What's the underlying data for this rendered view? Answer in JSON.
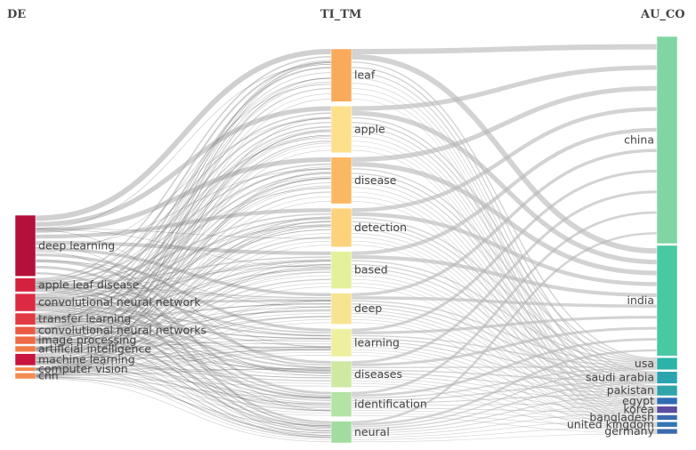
{
  "columns": [
    {
      "header": "DE"
    },
    {
      "header": "TI_TM"
    },
    {
      "header": "AU_CO"
    }
  ],
  "nodes": {
    "DE": [
      {
        "label": "deep learning",
        "weight": 31,
        "color": "#b5103c"
      },
      {
        "label": "apple leaf disease",
        "weight": 7,
        "color": "#d52140"
      },
      {
        "label": "convolutional neural network",
        "weight": 9,
        "color": "#dc2a43"
      },
      {
        "label": "transfer learning",
        "weight": 6,
        "color": "#e23a45"
      },
      {
        "label": "convolutional neural networks",
        "weight": 4,
        "color": "#e95b43"
      },
      {
        "label": "image processing",
        "weight": 4,
        "color": "#ef6a46"
      },
      {
        "label": "artificial intelligence",
        "weight": 3,
        "color": "#f07a44"
      },
      {
        "label": "machine learning",
        "weight": 6,
        "color": "#c8143e"
      },
      {
        "label": "computer vision",
        "weight": 2,
        "color": "#f38a4c"
      },
      {
        "label": "cnn",
        "weight": 3,
        "color": "#f58b53"
      }
    ],
    "TI_TM": [
      {
        "label": "leaf",
        "weight": 34,
        "color": "#f9aa5b"
      },
      {
        "label": "apple",
        "weight": 30,
        "color": "#fde08b"
      },
      {
        "label": "disease",
        "weight": 30,
        "color": "#fbb862"
      },
      {
        "label": "detection",
        "weight": 25,
        "color": "#fdd27c"
      },
      {
        "label": "based",
        "weight": 24,
        "color": "#e4f19a"
      },
      {
        "label": "deep",
        "weight": 20,
        "color": "#f7e491"
      },
      {
        "label": "learning",
        "weight": 18,
        "color": "#eef0a0"
      },
      {
        "label": "diseases",
        "weight": 17,
        "color": "#cfe9a2"
      },
      {
        "label": "identification",
        "weight": 16,
        "color": "#b4e3a4"
      },
      {
        "label": "neural",
        "weight": 14,
        "color": "#a2dca1"
      }
    ],
    "AU_CO": [
      {
        "label": "china",
        "weight": 120,
        "color": "#7fd6a2"
      },
      {
        "label": "india",
        "weight": 64,
        "color": "#48c9a1"
      },
      {
        "label": "usa",
        "weight": 7,
        "color": "#2ab3a8"
      },
      {
        "label": "saudi arabia",
        "weight": 7,
        "color": "#2aa5b0"
      },
      {
        "label": "pakistan",
        "weight": 6,
        "color": "#2fa5a9"
      },
      {
        "label": "egypt",
        "weight": 4,
        "color": "#2f6db3"
      },
      {
        "label": "korea",
        "weight": 4,
        "color": "#5b4ea1"
      },
      {
        "label": "bangladesh",
        "weight": 3,
        "color": "#3a6bb0"
      },
      {
        "label": "united kingdom",
        "weight": 3,
        "color": "#3276b5"
      },
      {
        "label": "germany",
        "weight": 3,
        "color": "#3b6aad"
      }
    ]
  }
}
